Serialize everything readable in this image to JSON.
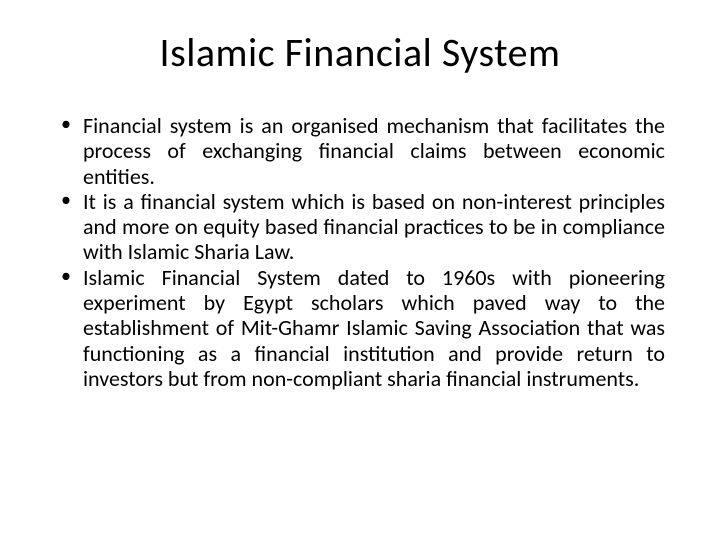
{
  "title": "Islamic Financial System",
  "bullets": [
    "Financial system is an organised mechanism that facilitates the process of exchanging financial claims between economic entities.",
    "It is a financial system which is based on non-interest principles and more on equity based financial practices to be in compliance with Islamic Sharia Law.",
    "Islamic Financial System dated to 1960s with pioneering experiment by Egypt scholars which paved way to the establishment of Mit-Ghamr Islamic Saving Association that was functioning as a financial institution and provide return to investors but from non-compliant sharia financial instruments."
  ],
  "colors": {
    "background": "#ffffff",
    "text": "#000000"
  },
  "typography": {
    "title_fontsize": 40,
    "body_fontsize": 22,
    "font_family": "Calibri"
  }
}
